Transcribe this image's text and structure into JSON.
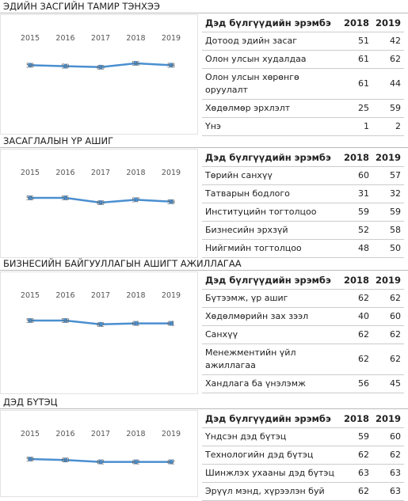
{
  "sections": [
    {
      "title": "ЭДИЙН ЗАСГИЙН ТАМИР ТЭНХЭЭ",
      "chart": {
        "years": [
          "2015",
          "2016",
          "2017",
          "2018",
          "2019"
        ],
        "values": [
          58,
          59,
          60,
          56,
          58
        ]
      },
      "table": {
        "header": [
          "Дэд бүлгүүдийн эрэмбэ",
          "2018",
          "2019"
        ],
        "rows": [
          [
            "Дотоод эдийн засаг",
            "51",
            "42"
          ],
          [
            "Олон улсын худалдаа",
            "61",
            "62"
          ],
          [
            "Олон улсын хөрөнгө оруулалт",
            "61",
            "44"
          ],
          [
            "Хөдөлмөр эрхлэлт",
            "25",
            "59"
          ],
          [
            "Үнэ",
            "1",
            "2"
          ]
        ]
      }
    },
    {
      "title": "ЗАСАГЛАЛЫН ҮР АШИГ",
      "chart": {
        "years": [
          "2015",
          "2016",
          "2017",
          "2018",
          "2019"
        ],
        "values": [
          55,
          55,
          60,
          57,
          59
        ]
      },
      "table": {
        "header": [
          "Дэд бүлгүүдийн эрэмбэ",
          "2018",
          "2019"
        ],
        "rows": [
          [
            "Төрийн санхүү",
            "60",
            "57"
          ],
          [
            "Татварын бодлого",
            "31",
            "32"
          ],
          [
            "Институцийн тогтолцоо",
            "59",
            "59"
          ],
          [
            "Бизнесийн эрхзүй",
            "52",
            "58"
          ],
          [
            "Нийгмийн тогтолцоо",
            "48",
            "50"
          ]
        ]
      }
    },
    {
      "title": "БИЗНЕСИЙН БАЙГУУЛЛАГЫН АШИГТ АЖИЛЛАГАА",
      "chart": {
        "years": [
          "2015",
          "2016",
          "2017",
          "2018",
          "2019"
        ],
        "values": [
          58,
          58,
          62,
          61,
          61
        ]
      },
      "table": {
        "header": [
          "Дэд бүлгүүдийн эрэмбэ",
          "2018",
          "2019"
        ],
        "rows": [
          [
            "Бүтээмж, үр ашиг",
            "62",
            "62"
          ],
          [
            "Хөдөлмөрийн зах зээл",
            "40",
            "60"
          ],
          [
            "Санхүү",
            "62",
            "62"
          ],
          [
            "Менежментийн үйл ажиллагаа",
            "62",
            "62"
          ],
          [
            "Хандлага ба үнэлэмж",
            "56",
            "45"
          ]
        ]
      }
    },
    {
      "title": "ДЭД БҮТЭЦ",
      "chart": {
        "years": [
          "2015",
          "2016",
          "2017",
          "2018",
          "2019"
        ],
        "values": [
          59,
          60,
          62,
          62,
          62
        ]
      },
      "table": {
        "header": [
          "Дэд бүлгүүдийн эрэмбэ",
          "2018",
          "2019"
        ],
        "rows": [
          [
            "Үндсэн дэд бүтэц",
            "59",
            "60"
          ],
          [
            "Технологийн дэд бүтэц",
            "62",
            "62"
          ],
          [
            "Шинжлэх ухааны дэд бүтэц",
            "63",
            "63"
          ],
          [
            "Эрүүл мэнд, хүрээлэн буй",
            "62",
            "63"
          ]
        ]
      }
    }
  ]
}
